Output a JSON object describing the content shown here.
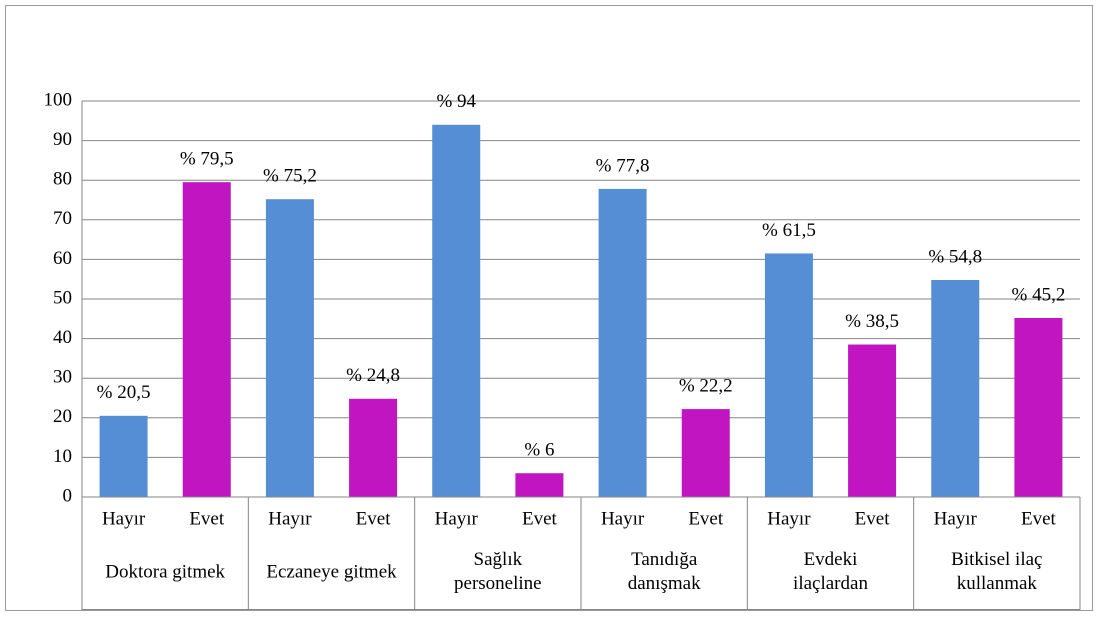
{
  "chart_data": {
    "type": "bar",
    "categories": [
      "Doktora gitmek",
      "Eczaneye gitmek",
      "Sağlık\npersoneline",
      "Tanıdığa\ndanışmak",
      "Evdeki\nilaçlardan",
      "Bitkisel ilaç\nkullanmak"
    ],
    "series": [
      {
        "name": "Hayır",
        "color": "#558ed5",
        "values": [
          20.5,
          75.2,
          94,
          77.8,
          61.5,
          54.8
        ],
        "value_labels": [
          "% 20,5",
          "% 75,2",
          "% 94",
          "% 77,8",
          "% 61,5",
          "% 54,8"
        ]
      },
      {
        "name": "Evet",
        "color": "#c015c0",
        "values": [
          79.5,
          24.8,
          6,
          22.2,
          38.5,
          45.2
        ],
        "value_labels": [
          "% 79,5",
          "% 24,8",
          "% 6",
          "% 22,2",
          "% 38,5",
          "% 45,2"
        ]
      }
    ],
    "ylim": [
      0,
      100
    ],
    "yticks": [
      0,
      10,
      20,
      30,
      40,
      50,
      60,
      70,
      80,
      90,
      100
    ],
    "grid": true
  }
}
